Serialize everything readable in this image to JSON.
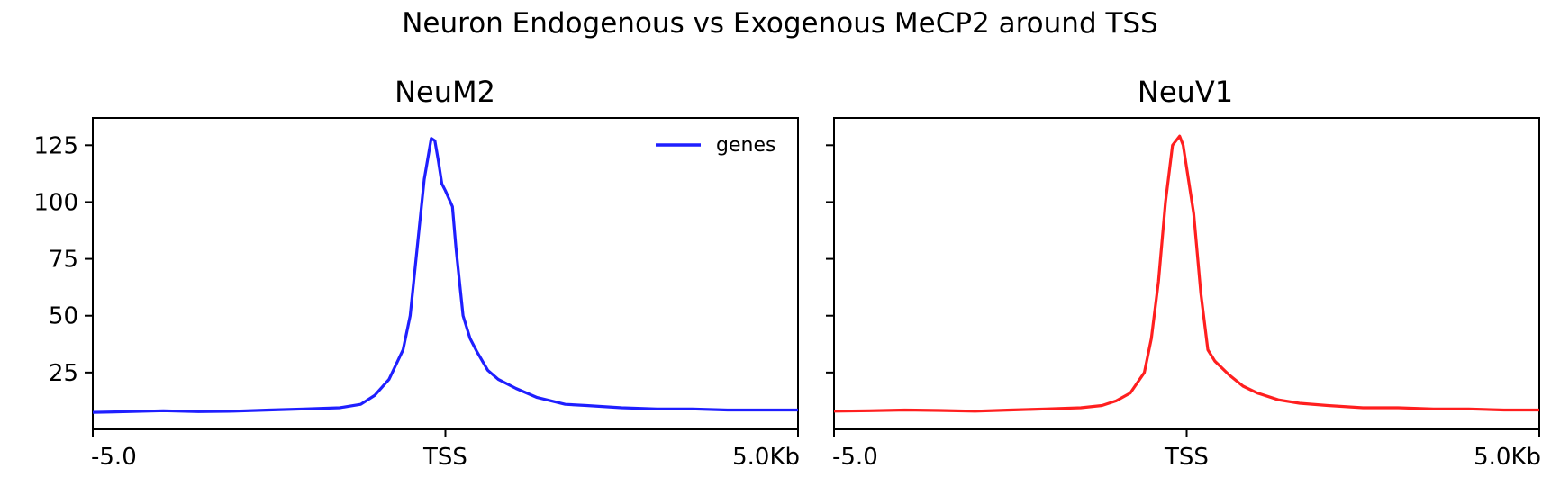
{
  "figure": {
    "title": "Neuron Endogenous vs Exogenous MeCP2 around TSS"
  },
  "chart_data": [
    {
      "type": "line",
      "title": "NeuM2",
      "color": "#1f1fff",
      "legend": {
        "label": "genes",
        "placement": "top-right"
      },
      "xlim": [
        -5.0,
        5.0
      ],
      "ylim": [
        0,
        137
      ],
      "xticks": [
        {
          "value": -5.0,
          "label": "-5.0"
        },
        {
          "value": 0.0,
          "label": "TSS"
        },
        {
          "value": 5.0,
          "label": "5.0Kb"
        }
      ],
      "yticks": [
        {
          "value": 25,
          "label": "25"
        },
        {
          "value": 50,
          "label": "50"
        },
        {
          "value": 75,
          "label": "75"
        },
        {
          "value": 100,
          "label": "100"
        },
        {
          "value": 125,
          "label": "125"
        }
      ],
      "series": [
        {
          "name": "genes",
          "x": [
            -5.0,
            -4.5,
            -4.0,
            -3.5,
            -3.0,
            -2.5,
            -2.0,
            -1.5,
            -1.2,
            -1.0,
            -0.8,
            -0.6,
            -0.5,
            -0.4,
            -0.3,
            -0.2,
            -0.15,
            -0.1,
            -0.05,
            0.0,
            0.1,
            0.15,
            0.25,
            0.35,
            0.45,
            0.6,
            0.75,
            1.0,
            1.3,
            1.7,
            2.0,
            2.5,
            3.0,
            3.5,
            4.0,
            4.5,
            5.0
          ],
          "y": [
            7.5,
            7.8,
            8.2,
            7.8,
            8.0,
            8.5,
            9.0,
            9.5,
            11.0,
            15.0,
            22.0,
            35.0,
            50.0,
            80.0,
            110.0,
            128.0,
            127.0,
            118.0,
            108.0,
            105.0,
            98.0,
            80.0,
            50.0,
            40.0,
            34.0,
            26.0,
            22.0,
            18.0,
            14.0,
            11.0,
            10.5,
            9.5,
            9.0,
            9.0,
            8.5,
            8.5,
            8.5
          ]
        }
      ]
    },
    {
      "type": "line",
      "title": "NeuV1",
      "color": "#ff1f1f",
      "xlim": [
        -5.0,
        5.0
      ],
      "ylim": [
        0,
        137
      ],
      "xticks": [
        {
          "value": -5.0,
          "label": "-5.0"
        },
        {
          "value": 0.0,
          "label": "TSS"
        },
        {
          "value": 5.0,
          "label": "5.0Kb"
        }
      ],
      "yticks": [
        {
          "value": 25,
          "label": ""
        },
        {
          "value": 50,
          "label": ""
        },
        {
          "value": 75,
          "label": ""
        },
        {
          "value": 100,
          "label": ""
        },
        {
          "value": 125,
          "label": ""
        }
      ],
      "series": [
        {
          "name": "genes",
          "x": [
            -5.0,
            -4.5,
            -4.0,
            -3.5,
            -3.0,
            -2.5,
            -2.0,
            -1.5,
            -1.2,
            -1.0,
            -0.8,
            -0.6,
            -0.5,
            -0.4,
            -0.3,
            -0.2,
            -0.1,
            -0.05,
            0.0,
            0.1,
            0.2,
            0.3,
            0.4,
            0.6,
            0.8,
            1.0,
            1.3,
            1.6,
            2.0,
            2.5,
            3.0,
            3.5,
            4.0,
            4.5,
            5.0
          ],
          "y": [
            8.0,
            8.2,
            8.5,
            8.3,
            8.0,
            8.5,
            9.0,
            9.5,
            10.5,
            12.5,
            16.0,
            25.0,
            40.0,
            65.0,
            100.0,
            125.0,
            129.0,
            125.0,
            115.0,
            95.0,
            60.0,
            35.0,
            30.0,
            24.0,
            19.0,
            16.0,
            13.0,
            11.5,
            10.5,
            9.5,
            9.5,
            9.0,
            9.0,
            8.5,
            8.5
          ]
        }
      ]
    }
  ]
}
